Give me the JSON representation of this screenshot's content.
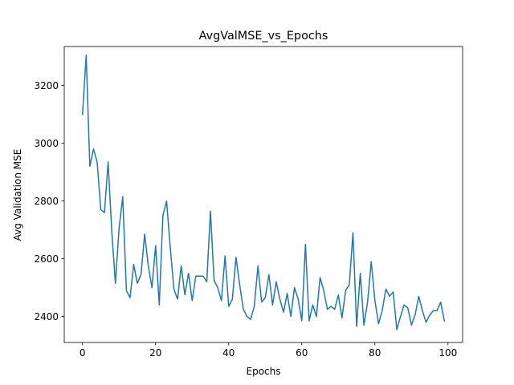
{
  "chart_data": {
    "type": "line",
    "title": "AvgValMSE_vs_Epochs",
    "xlabel": "Epochs",
    "ylabel": "Avg Validation MSE",
    "xlim": [
      -5,
      104
    ],
    "ylim": [
      2310,
      3335
    ],
    "xticks": [
      0,
      20,
      40,
      60,
      80,
      100
    ],
    "yticks": [
      2400,
      2600,
      2800,
      3000,
      3200
    ],
    "grid": false,
    "series": [
      {
        "color": "#1f77b4",
        "x": [
          0,
          1,
          2,
          3,
          4,
          5,
          6,
          7,
          8,
          9,
          10,
          11,
          12,
          13,
          14,
          15,
          16,
          17,
          18,
          19,
          20,
          21,
          22,
          23,
          24,
          25,
          26,
          27,
          28,
          29,
          30,
          31,
          32,
          33,
          34,
          35,
          36,
          37,
          38,
          39,
          40,
          41,
          42,
          43,
          44,
          45,
          46,
          47,
          48,
          49,
          50,
          51,
          52,
          53,
          54,
          55,
          56,
          57,
          58,
          59,
          60,
          61,
          62,
          63,
          64,
          65,
          66,
          67,
          68,
          69,
          70,
          71,
          72,
          73,
          74,
          75,
          76,
          77,
          78,
          79,
          80,
          81,
          82,
          83,
          84,
          85,
          86,
          87,
          88,
          89,
          90,
          91,
          92,
          93,
          94,
          95,
          96,
          97,
          98,
          99
        ],
        "values": [
          3100,
          3305,
          2920,
          2980,
          2935,
          2770,
          2760,
          2935,
          2695,
          2515,
          2705,
          2815,
          2490,
          2465,
          2580,
          2515,
          2545,
          2685,
          2575,
          2500,
          2645,
          2440,
          2750,
          2800,
          2640,
          2495,
          2460,
          2575,
          2475,
          2550,
          2455,
          2540,
          2540,
          2540,
          2520,
          2765,
          2525,
          2500,
          2455,
          2610,
          2435,
          2460,
          2605,
          2510,
          2425,
          2400,
          2390,
          2435,
          2575,
          2450,
          2465,
          2545,
          2440,
          2520,
          2460,
          2415,
          2480,
          2400,
          2500,
          2460,
          2385,
          2650,
          2385,
          2440,
          2400,
          2535,
          2490,
          2425,
          2435,
          2425,
          2475,
          2395,
          2490,
          2510,
          2690,
          2365,
          2550,
          2370,
          2450,
          2590,
          2455,
          2375,
          2420,
          2495,
          2470,
          2485,
          2355,
          2400,
          2440,
          2430,
          2370,
          2405,
          2470,
          2420,
          2380,
          2405,
          2420,
          2420,
          2450,
          2385
        ]
      }
    ]
  }
}
